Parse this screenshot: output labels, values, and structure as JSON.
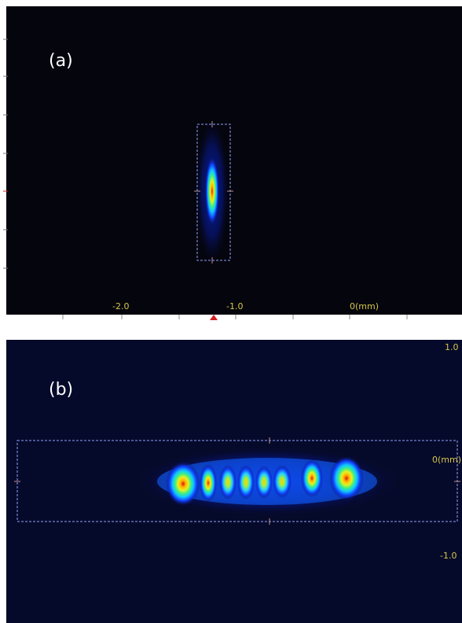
{
  "panels": [
    {
      "label": "(a)",
      "x_labels": [
        "-2.0",
        "-1.0",
        "0(mm)"
      ]
    },
    {
      "label": "(b)",
      "y_labels": [
        "1.0",
        "0(mm)",
        "-1.0"
      ]
    }
  ]
}
